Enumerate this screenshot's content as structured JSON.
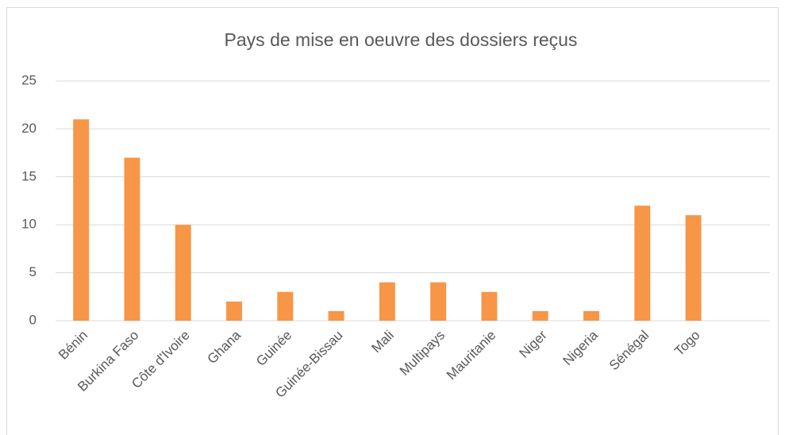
{
  "chart_data": {
    "type": "bar",
    "title": "Pays de mise en oeuvre des dossiers reçus",
    "categories": [
      "Bénin",
      "Burkina Faso",
      "Côte d'Ivoire",
      "Ghana",
      "Guinée",
      "Guinée-Bissau",
      "Mali",
      "Multipays",
      "Mauritanie",
      "Niger",
      "Nigeria",
      "Sénégal",
      "Togo",
      null
    ],
    "values": [
      21,
      17,
      10,
      2,
      3,
      1,
      4,
      4,
      3,
      1,
      1,
      12,
      11,
      null
    ],
    "color": "#f79646",
    "ylim": [
      0,
      25
    ],
    "yticks": [
      0,
      5,
      10,
      15,
      20,
      25
    ],
    "grid": true
  }
}
